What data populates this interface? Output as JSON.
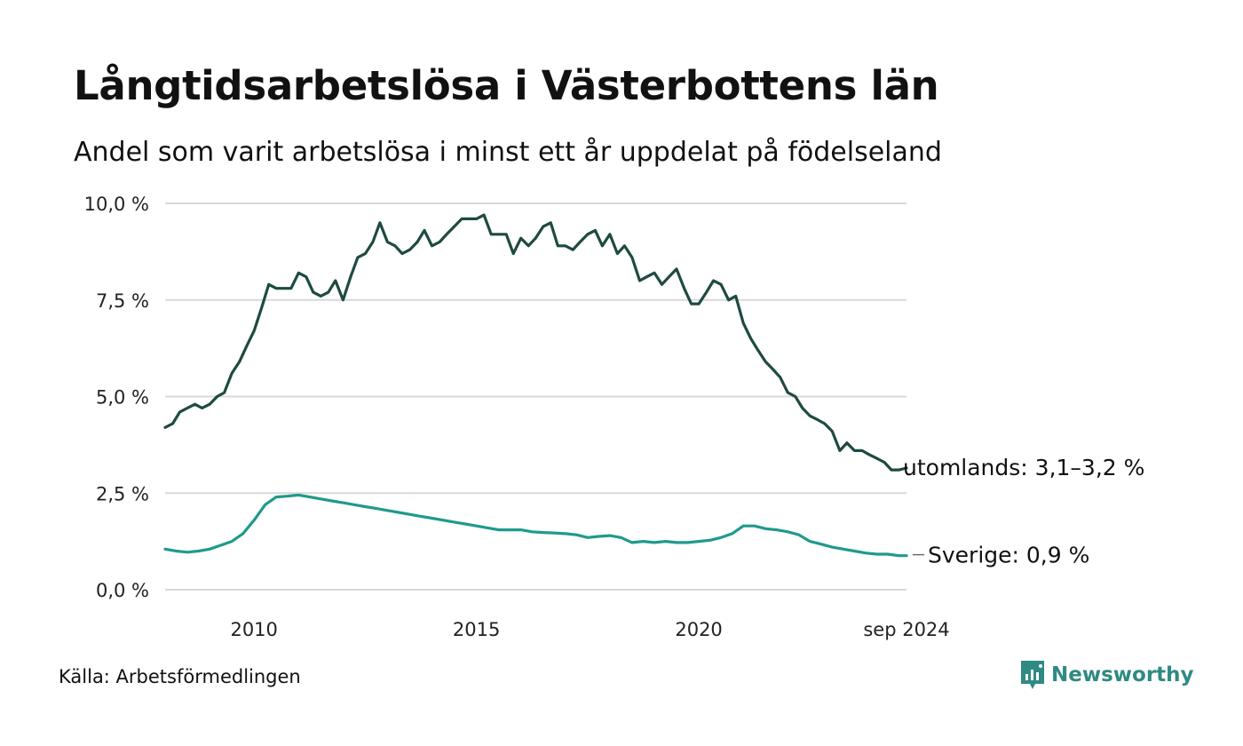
{
  "header": {
    "title": "Långtidsarbetslösa i Västerbottens län",
    "subtitle": "Andel som varit arbetslösa i minst ett år uppdelat på födelseland"
  },
  "footer": {
    "source": "Källa: Arbetsförmedlingen",
    "brand": "Newsworthy",
    "brand_icon": "bar-chart-logo-icon"
  },
  "colors": {
    "utomlands": "#1e4a42",
    "sverige": "#1f9a8c",
    "grid": "#d9d9d9",
    "brand": "#2f8a82"
  },
  "chart_data": {
    "type": "line",
    "title": "Långtidsarbetslösa i Västerbottens län",
    "subtitle": "Andel som varit arbetslösa i minst ett år uppdelat på födelseland",
    "ylim": [
      0,
      10
    ],
    "y_ticks": [
      "10,0 %",
      "7,5 %",
      "5,0 %",
      "2,5 %",
      "0,0 %"
    ],
    "y_tick_values": [
      10,
      7.5,
      5,
      2.5,
      0
    ],
    "x_ticks": [
      "2010",
      "2015",
      "2020",
      "sep 2024"
    ],
    "x_tick_values": [
      2010,
      2015,
      2020,
      2024.67
    ],
    "xlim": [
      2008.0,
      2024.67
    ],
    "grid": true,
    "series": [
      {
        "name": "utomlands",
        "label": "utomlands: 3,1–3,2 %",
        "color": "#1e4a42",
        "x": [
          2008.0,
          2008.17,
          2008.33,
          2008.5,
          2008.67,
          2008.83,
          2009.0,
          2009.17,
          2009.33,
          2009.5,
          2009.67,
          2009.83,
          2010.0,
          2010.17,
          2010.33,
          2010.5,
          2010.67,
          2010.83,
          2011.0,
          2011.17,
          2011.33,
          2011.5,
          2011.67,
          2011.83,
          2012.0,
          2012.17,
          2012.33,
          2012.5,
          2012.67,
          2012.83,
          2013.0,
          2013.17,
          2013.33,
          2013.5,
          2013.67,
          2013.83,
          2014.0,
          2014.17,
          2014.33,
          2014.5,
          2014.67,
          2014.83,
          2015.0,
          2015.17,
          2015.33,
          2015.5,
          2015.67,
          2015.83,
          2016.0,
          2016.17,
          2016.33,
          2016.5,
          2016.67,
          2016.83,
          2017.0,
          2017.17,
          2017.33,
          2017.5,
          2017.67,
          2017.83,
          2018.0,
          2018.17,
          2018.33,
          2018.5,
          2018.67,
          2018.83,
          2019.0,
          2019.17,
          2019.33,
          2019.5,
          2019.67,
          2019.83,
          2020.0,
          2020.17,
          2020.33,
          2020.5,
          2020.67,
          2020.83,
          2021.0,
          2021.17,
          2021.33,
          2021.5,
          2021.67,
          2021.83,
          2022.0,
          2022.17,
          2022.33,
          2022.5,
          2022.67,
          2022.83,
          2023.0,
          2023.17,
          2023.33,
          2023.5,
          2023.67,
          2023.83,
          2024.0,
          2024.17,
          2024.33,
          2024.5,
          2024.67
        ],
        "values": [
          4.2,
          4.3,
          4.6,
          4.7,
          4.8,
          4.7,
          4.8,
          5.0,
          5.1,
          5.6,
          5.9,
          6.3,
          6.7,
          7.3,
          7.9,
          7.8,
          7.8,
          7.8,
          8.2,
          8.1,
          7.7,
          7.6,
          7.7,
          8.0,
          7.5,
          8.1,
          8.6,
          8.7,
          9.0,
          9.5,
          9.0,
          8.9,
          8.7,
          8.8,
          9.0,
          9.3,
          8.9,
          9.0,
          9.2,
          9.4,
          9.6,
          9.6,
          9.6,
          9.7,
          9.2,
          9.2,
          9.2,
          8.7,
          9.1,
          8.9,
          9.1,
          9.4,
          9.5,
          8.9,
          8.9,
          8.8,
          9.0,
          9.2,
          9.3,
          8.9,
          9.2,
          8.7,
          8.9,
          8.6,
          8.0,
          8.1,
          8.2,
          7.9,
          8.1,
          8.3,
          7.8,
          7.4,
          7.4,
          7.7,
          8.0,
          7.9,
          7.5,
          7.6,
          6.9,
          6.5,
          6.2,
          5.9,
          5.7,
          5.5,
          5.1,
          5.0,
          4.7,
          4.5,
          4.4,
          4.3,
          4.1,
          3.6,
          3.8,
          3.6,
          3.6,
          3.5,
          3.4,
          3.3,
          3.1,
          3.1,
          3.15
        ]
      },
      {
        "name": "Sverige",
        "label": "Sverige: 0,9 %",
        "color": "#1f9a8c",
        "x": [
          2008.0,
          2008.25,
          2008.5,
          2008.75,
          2009.0,
          2009.25,
          2009.5,
          2009.75,
          2010.0,
          2010.25,
          2010.5,
          2010.75,
          2011.0,
          2011.25,
          2011.5,
          2011.75,
          2012.0,
          2012.25,
          2012.5,
          2012.75,
          2013.0,
          2013.25,
          2013.5,
          2013.75,
          2014.0,
          2014.25,
          2014.5,
          2014.75,
          2015.0,
          2015.25,
          2015.5,
          2015.75,
          2016.0,
          2016.25,
          2016.5,
          2016.75,
          2017.0,
          2017.25,
          2017.5,
          2017.75,
          2018.0,
          2018.25,
          2018.5,
          2018.75,
          2019.0,
          2019.25,
          2019.5,
          2019.75,
          2020.0,
          2020.25,
          2020.5,
          2020.75,
          2021.0,
          2021.25,
          2021.5,
          2021.75,
          2022.0,
          2022.25,
          2022.5,
          2022.75,
          2023.0,
          2023.25,
          2023.5,
          2023.75,
          2024.0,
          2024.25,
          2024.5,
          2024.67
        ],
        "values": [
          1.05,
          1.0,
          0.97,
          1.0,
          1.05,
          1.15,
          1.25,
          1.45,
          1.8,
          2.2,
          2.4,
          2.42,
          2.45,
          2.4,
          2.35,
          2.3,
          2.25,
          2.2,
          2.15,
          2.1,
          2.05,
          2.0,
          1.95,
          1.9,
          1.85,
          1.8,
          1.75,
          1.7,
          1.65,
          1.6,
          1.55,
          1.55,
          1.55,
          1.5,
          1.48,
          1.47,
          1.45,
          1.42,
          1.35,
          1.38,
          1.4,
          1.35,
          1.22,
          1.25,
          1.22,
          1.25,
          1.22,
          1.22,
          1.25,
          1.28,
          1.35,
          1.45,
          1.65,
          1.65,
          1.58,
          1.55,
          1.5,
          1.42,
          1.25,
          1.18,
          1.1,
          1.05,
          1.0,
          0.95,
          0.92,
          0.92,
          0.88,
          0.88
        ]
      }
    ]
  }
}
